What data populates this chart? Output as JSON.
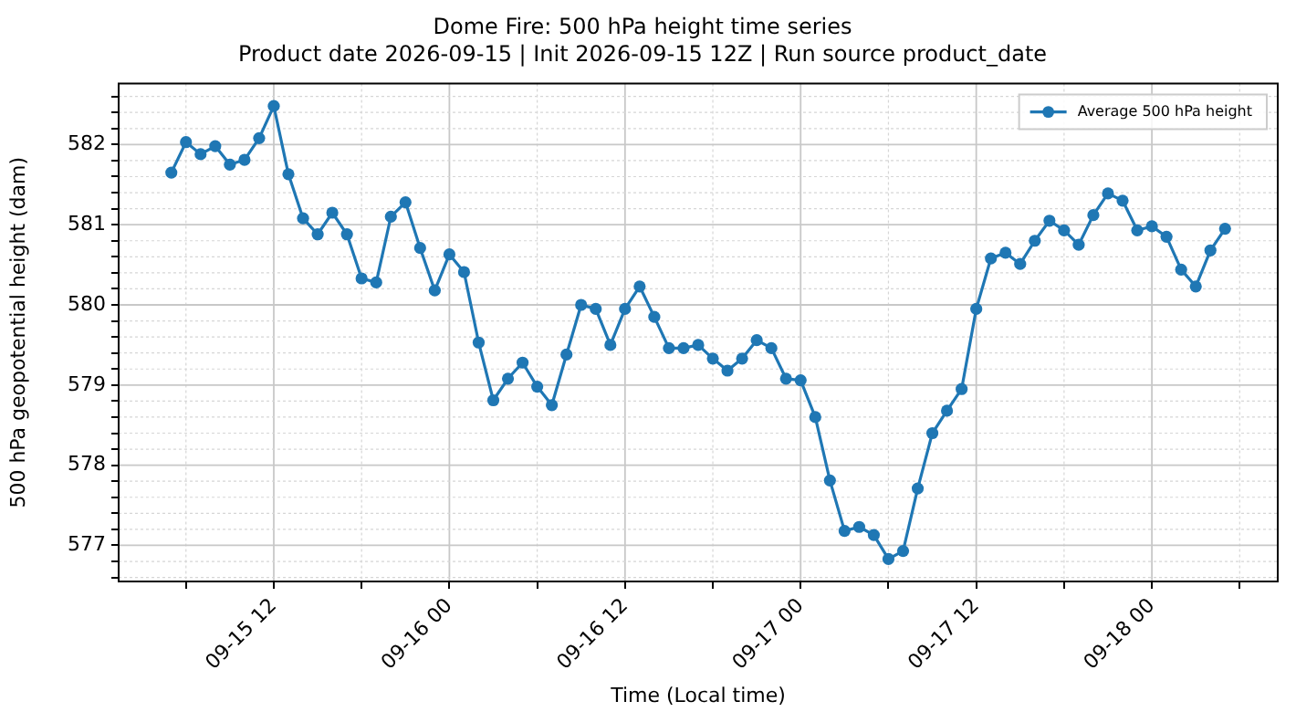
{
  "chart_data": {
    "type": "line",
    "title": "Dome Fire: 500 hPa height time series",
    "subtitle": "Product date 2026-09-15 | Init 2026-09-15 12Z | Run source product_date",
    "xlabel": "Time (Local time)",
    "ylabel": "500 hPa geopotential height (dam)",
    "x": [
      "2026-09-15T05:00",
      "2026-09-15T06:00",
      "2026-09-15T07:00",
      "2026-09-15T08:00",
      "2026-09-15T09:00",
      "2026-09-15T10:00",
      "2026-09-15T11:00",
      "2026-09-15T12:00",
      "2026-09-15T13:00",
      "2026-09-15T14:00",
      "2026-09-15T15:00",
      "2026-09-15T16:00",
      "2026-09-15T17:00",
      "2026-09-15T18:00",
      "2026-09-15T19:00",
      "2026-09-15T20:00",
      "2026-09-15T21:00",
      "2026-09-15T22:00",
      "2026-09-15T23:00",
      "2026-09-16T00:00",
      "2026-09-16T01:00",
      "2026-09-16T02:00",
      "2026-09-16T03:00",
      "2026-09-16T04:00",
      "2026-09-16T05:00",
      "2026-09-16T06:00",
      "2026-09-16T07:00",
      "2026-09-16T08:00",
      "2026-09-16T09:00",
      "2026-09-16T10:00",
      "2026-09-16T11:00",
      "2026-09-16T12:00",
      "2026-09-16T13:00",
      "2026-09-16T14:00",
      "2026-09-16T15:00",
      "2026-09-16T16:00",
      "2026-09-16T17:00",
      "2026-09-16T18:00",
      "2026-09-16T19:00",
      "2026-09-16T20:00",
      "2026-09-16T21:00",
      "2026-09-16T22:00",
      "2026-09-16T23:00",
      "2026-09-17T00:00",
      "2026-09-17T01:00",
      "2026-09-17T02:00",
      "2026-09-17T03:00",
      "2026-09-17T04:00",
      "2026-09-17T05:00",
      "2026-09-17T06:00",
      "2026-09-17T07:00",
      "2026-09-17T08:00",
      "2026-09-17T09:00",
      "2026-09-17T10:00",
      "2026-09-17T11:00",
      "2026-09-17T12:00",
      "2026-09-17T13:00",
      "2026-09-17T14:00",
      "2026-09-17T15:00",
      "2026-09-17T16:00",
      "2026-09-17T17:00",
      "2026-09-17T18:00",
      "2026-09-17T19:00",
      "2026-09-17T20:00",
      "2026-09-17T21:00",
      "2026-09-17T22:00",
      "2026-09-17T23:00",
      "2026-09-18T00:00",
      "2026-09-18T01:00",
      "2026-09-18T02:00",
      "2026-09-18T03:00",
      "2026-09-18T04:00",
      "2026-09-18T05:00"
    ],
    "series": [
      {
        "name": "Average 500 hPa height",
        "color": "#1f77b4",
        "values": [
          581.65,
          582.03,
          581.88,
          581.98,
          581.75,
          581.81,
          582.08,
          582.48,
          581.63,
          581.08,
          580.88,
          581.15,
          580.88,
          580.33,
          580.28,
          581.1,
          581.28,
          580.71,
          580.18,
          580.63,
          580.41,
          579.53,
          578.81,
          579.08,
          579.28,
          578.98,
          578.75,
          579.38,
          580.0,
          579.95,
          579.5,
          579.95,
          580.23,
          579.85,
          579.46,
          579.46,
          579.5,
          579.33,
          579.18,
          579.33,
          579.56,
          579.46,
          579.08,
          579.06,
          578.6,
          577.81,
          577.18,
          577.23,
          577.13,
          576.83,
          576.93,
          577.71,
          578.4,
          578.68,
          578.95,
          579.95,
          580.58,
          580.65,
          580.51,
          580.8,
          581.05,
          580.93,
          580.75,
          581.12,
          581.39,
          581.3,
          580.93,
          580.98,
          580.85,
          580.44,
          580.23,
          580.68,
          580.95
        ]
      }
    ],
    "xlim": [
      "2026-09-15T01:24",
      "2026-09-18T08:36"
    ],
    "xticks": [
      {
        "value": "2026-09-15T06:00",
        "label": null
      },
      {
        "value": "2026-09-15T12:00",
        "label": "09-15 12"
      },
      {
        "value": "2026-09-15T18:00",
        "label": null
      },
      {
        "value": "2026-09-16T00:00",
        "label": "09-16 00"
      },
      {
        "value": "2026-09-16T06:00",
        "label": null
      },
      {
        "value": "2026-09-16T12:00",
        "label": "09-16 12"
      },
      {
        "value": "2026-09-16T18:00",
        "label": null
      },
      {
        "value": "2026-09-17T00:00",
        "label": "09-17 00"
      },
      {
        "value": "2026-09-17T06:00",
        "label": null
      },
      {
        "value": "2026-09-17T12:00",
        "label": "09-17 12"
      },
      {
        "value": "2026-09-17T18:00",
        "label": null
      },
      {
        "value": "2026-09-18T00:00",
        "label": "09-18 00"
      },
      {
        "value": "2026-09-18T06:00",
        "label": null
      }
    ],
    "ylim": [
      576.55,
      582.76
    ],
    "yticks": [
      {
        "value": 576.6,
        "label": null
      },
      {
        "value": 576.8,
        "label": null
      },
      577,
      {
        "value": 577.2,
        "label": null
      },
      {
        "value": 577.4,
        "label": null
      },
      {
        "value": 577.6,
        "label": null
      },
      {
        "value": 577.8,
        "label": null
      },
      578,
      {
        "value": 578.2,
        "label": null
      },
      {
        "value": 578.4,
        "label": null
      },
      {
        "value": 578.6,
        "label": null
      },
      {
        "value": 578.8,
        "label": null
      },
      579,
      {
        "value": 579.2,
        "label": null
      },
      {
        "value": 579.4,
        "label": null
      },
      {
        "value": 579.6,
        "label": null
      },
      {
        "value": 579.8,
        "label": null
      },
      580,
      {
        "value": 580.2,
        "label": null
      },
      {
        "value": 580.4,
        "label": null
      },
      {
        "value": 580.6,
        "label": null
      },
      {
        "value": 580.8,
        "label": null
      },
      581,
      {
        "value": 581.2,
        "label": null
      },
      {
        "value": 581.4,
        "label": null
      },
      {
        "value": 581.6,
        "label": null
      },
      {
        "value": 581.8,
        "label": null
      },
      582,
      {
        "value": 582.2,
        "label": null
      },
      {
        "value": 582.4,
        "label": null
      },
      {
        "value": 582.6,
        "label": null
      }
    ],
    "grid": true,
    "legend": "top right",
    "marker": "circle",
    "line_style": "solid"
  }
}
